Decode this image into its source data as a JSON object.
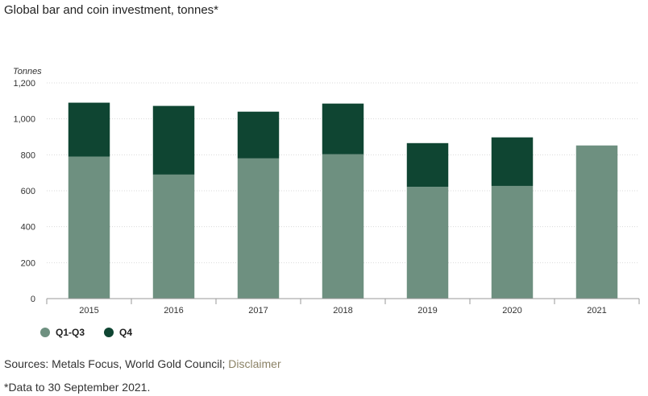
{
  "title": "Global bar and coin investment, tonnes*",
  "sources": {
    "label": "Sources: Metals Focus, World Gold Council;",
    "disclaimer": "Disclaimer"
  },
  "footnote": "*Data to 30 September 2021.",
  "colors": {
    "q1q3": "#6e9080",
    "q4": "#0f4532",
    "grid": "#d9d9d9",
    "axis": "#999999"
  },
  "chart_data": {
    "type": "bar",
    "stacked": true,
    "categories": [
      "2015",
      "2016",
      "2017",
      "2018",
      "2019",
      "2020",
      "2021"
    ],
    "series": [
      {
        "name": "Q1-Q3",
        "values": [
          790,
          690,
          780,
          803,
          622,
          627,
          852
        ]
      },
      {
        "name": "Q4",
        "values": [
          300,
          382,
          260,
          282,
          243,
          270,
          0
        ]
      }
    ],
    "title": "Global bar and coin investment, tonnes*",
    "ylabel": "Tonnes",
    "ylim": [
      0,
      1200
    ],
    "yticks": [
      0,
      200,
      400,
      600,
      800,
      1000,
      1200
    ],
    "ytick_labels": [
      "0",
      "200",
      "400",
      "600",
      "800",
      "1,000",
      "1,200"
    ],
    "grid": true,
    "legend": "bottom-left"
  }
}
